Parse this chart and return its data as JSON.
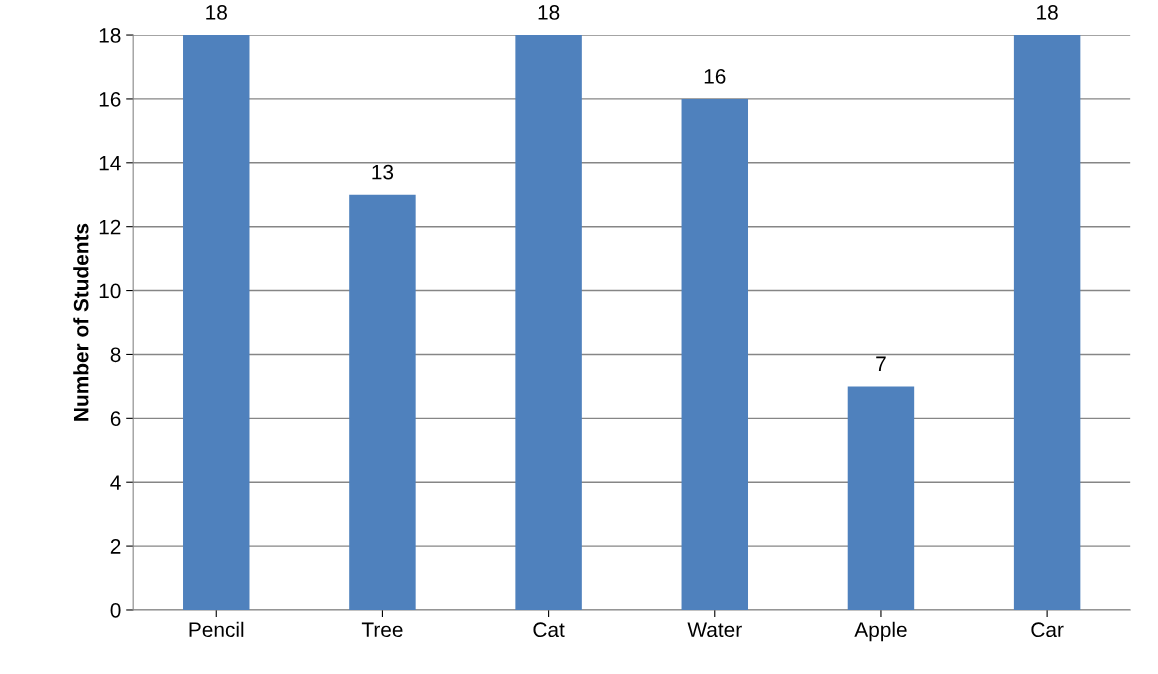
{
  "chart_data": {
    "type": "bar",
    "ylabel": "Number of Students",
    "categories": [
      "Pencil",
      "Tree",
      "Cat",
      "Water",
      "Apple",
      "Car"
    ],
    "values": [
      18,
      13,
      18,
      16,
      7,
      18
    ],
    "color": "#4f81bd",
    "ylim": [
      0,
      18
    ],
    "yticks": [
      0,
      2,
      4,
      6,
      8,
      10,
      12,
      14,
      16,
      18
    ],
    "grid": "y",
    "data_labels": true,
    "legend": false
  }
}
